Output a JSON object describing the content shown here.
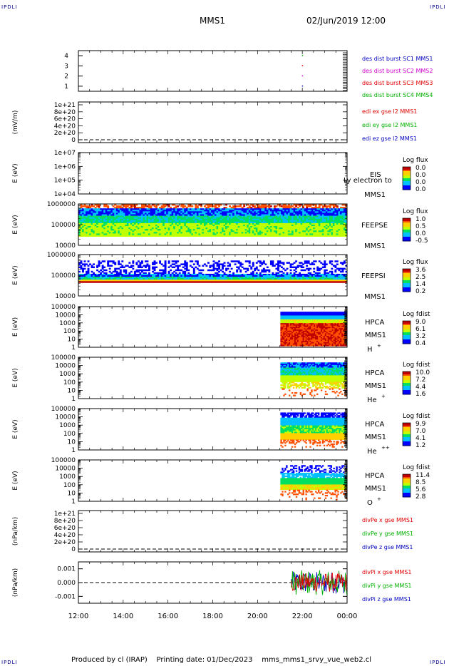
{
  "corner_labels": {
    "tl": "IPDLI",
    "tr": "IPDLI",
    "bl": "IPDLI",
    "br": "IPDLI"
  },
  "header": {
    "spacecraft": "MMS1",
    "datetime": "02/Jun/2019 12:00"
  },
  "footer": {
    "text": "Produced by cl (IRAP)    Printing date: 01/Dec/2023    mms_mms1_srvy_vue_web2.cl"
  },
  "colors": {
    "red": "#e00000",
    "green": "#00b000",
    "blue": "#0000c0",
    "magenta": "#d000d0",
    "dark_red": "#a00000"
  },
  "chart_data": [
    {
      "type": "scatter",
      "id": "burst",
      "yticks": [
        "4",
        "3",
        "2",
        "1"
      ],
      "ylim": [
        0.5,
        4.5
      ],
      "series": [
        {
          "name": "des dist burst SC1 MMS1",
          "color": "#0000c0",
          "x": [
            "22:00"
          ],
          "y": [
            1
          ]
        },
        {
          "name": "des dist burst SC2 MMS2",
          "color": "#d000d0",
          "x": [
            "22:00"
          ],
          "y": [
            2
          ]
        },
        {
          "name": "des dist burst SC3 MMS3",
          "color": "#e00000",
          "x": [
            "22:00"
          ],
          "y": [
            3
          ]
        },
        {
          "name": "des dist burst SC4 MMS4",
          "color": "#00b000",
          "x": [
            "22:00"
          ],
          "y": [
            4
          ]
        }
      ]
    },
    {
      "type": "line",
      "id": "edi",
      "ylabel": "(mV/m)",
      "yticks": [
        "1e+21",
        "8e+20",
        "6e+20",
        "4e+20",
        "2e+20",
        "0"
      ],
      "ylim": [
        0,
        1e+21
      ],
      "series": [
        {
          "name": "edi ex gse l2 MMS1",
          "color": "#e00000"
        },
        {
          "name": "edi ey gse l2 MMS1",
          "color": "#00b000"
        },
        {
          "name": "edi ez gse l2 MMS1",
          "color": "#0000c0"
        }
      ]
    },
    {
      "type": "heatmap",
      "id": "eis",
      "ylabel": "E (eV)",
      "yticks": [
        "1e+07",
        "1e+06",
        "1e+05",
        "1e+04"
      ],
      "log": true,
      "labels": [
        "EIS",
        "MMS1"
      ],
      "overlay": "Ly electron to",
      "colorbar": {
        "title": "Log flux",
        "ticks": [
          "0.0",
          "0.0",
          "0.0",
          "0.0"
        ]
      }
    },
    {
      "type": "heatmap",
      "id": "feepse",
      "ylabel": "E (eV)",
      "yticks": [
        "1000000",
        "100000",
        "10000"
      ],
      "log": true,
      "labels": [
        "FEEPSE",
        "MMS1"
      ],
      "time_range": [
        "12:00",
        "00:00"
      ],
      "colorbar": {
        "title": "Log flux",
        "ticks": [
          "1.0",
          "0.5",
          "0.0",
          "-0.5"
        ]
      }
    },
    {
      "type": "heatmap",
      "id": "feepsi",
      "ylabel": "E (eV)",
      "yticks": [
        "1000000",
        "100000",
        "10000"
      ],
      "log": true,
      "labels": [
        "FEEPSI",
        "MMS1"
      ],
      "time_range": [
        "12:00",
        "00:00"
      ],
      "colorbar": {
        "title": "Log flux",
        "ticks": [
          "3.6",
          "2.5",
          "1.4",
          "0.2"
        ]
      }
    },
    {
      "type": "heatmap",
      "id": "hpca_h",
      "ylabel": "E (eV)",
      "yticks": [
        "100000",
        "10000",
        "1000",
        "100",
        "10",
        "1"
      ],
      "log": true,
      "labels": [
        "HPCA",
        "MMS1"
      ],
      "species": "H",
      "charge": "+",
      "time_range": [
        "21:00",
        "00:00"
      ],
      "colorbar": {
        "title": "Log fdist",
        "ticks": [
          "9.0",
          "6.1",
          "3.2",
          "0.4"
        ]
      }
    },
    {
      "type": "heatmap",
      "id": "hpca_he",
      "ylabel": "E (eV)",
      "yticks": [
        "100000",
        "10000",
        "1000",
        "100",
        "10",
        "1"
      ],
      "log": true,
      "labels": [
        "HPCA",
        "MMS1"
      ],
      "species": "He",
      "charge": "+",
      "time_range": [
        "21:00",
        "00:00"
      ],
      "colorbar": {
        "title": "Log fdist",
        "ticks": [
          "10.0",
          "7.2",
          "4.4",
          "1.6"
        ]
      }
    },
    {
      "type": "heatmap",
      "id": "hpca_he2",
      "ylabel": "E (eV)",
      "yticks": [
        "100000",
        "10000",
        "1000",
        "100",
        "10",
        "1"
      ],
      "log": true,
      "labels": [
        "HPCA",
        "MMS1"
      ],
      "species": "He",
      "charge": "++",
      "time_range": [
        "21:00",
        "00:00"
      ],
      "colorbar": {
        "title": "Log fdist",
        "ticks": [
          "9.9",
          "7.0",
          "4.1",
          "1.2"
        ]
      }
    },
    {
      "type": "heatmap",
      "id": "hpca_o",
      "ylabel": "E (eV)",
      "yticks": [
        "100000",
        "10000",
        "1000",
        "100",
        "10",
        "1"
      ],
      "log": true,
      "labels": [
        "HPCA",
        "MMS1"
      ],
      "species": "O",
      "charge": "+",
      "time_range": [
        "21:00",
        "00:00"
      ],
      "colorbar": {
        "title": "Log fdist",
        "ticks": [
          "11.4",
          "8.5",
          "5.6",
          "2.8"
        ]
      }
    },
    {
      "type": "line",
      "id": "divpe",
      "ylabel": "(nPa/km)",
      "yticks": [
        "1e+21",
        "8e+20",
        "6e+20",
        "4e+20",
        "2e+20",
        "0"
      ],
      "ylim": [
        0,
        1e+21
      ],
      "series": [
        {
          "name": "divPe x gse MMS1",
          "color": "#e00000"
        },
        {
          "name": "divPe y gse MMS1",
          "color": "#00b000"
        },
        {
          "name": "divPe z gse MMS1",
          "color": "#0000c0"
        }
      ]
    },
    {
      "type": "line",
      "id": "divpi",
      "ylabel": "(nPa/km)",
      "yticks": [
        "0.001",
        "0.000",
        "-0.001"
      ],
      "ylim": [
        -0.0015,
        0.0015
      ],
      "time_range": [
        "21:30",
        "00:00"
      ],
      "series": [
        {
          "name": "divPi x gse MMS1",
          "color": "#e00000"
        },
        {
          "name": "divPi y gse MMS1",
          "color": "#00b000"
        },
        {
          "name": "divPi z gse MMS1",
          "color": "#0000c0"
        }
      ]
    }
  ],
  "xaxis": {
    "ticks": [
      "12:00",
      "14:00",
      "16:00",
      "18:00",
      "20:00",
      "22:00",
      "00:00"
    ]
  }
}
